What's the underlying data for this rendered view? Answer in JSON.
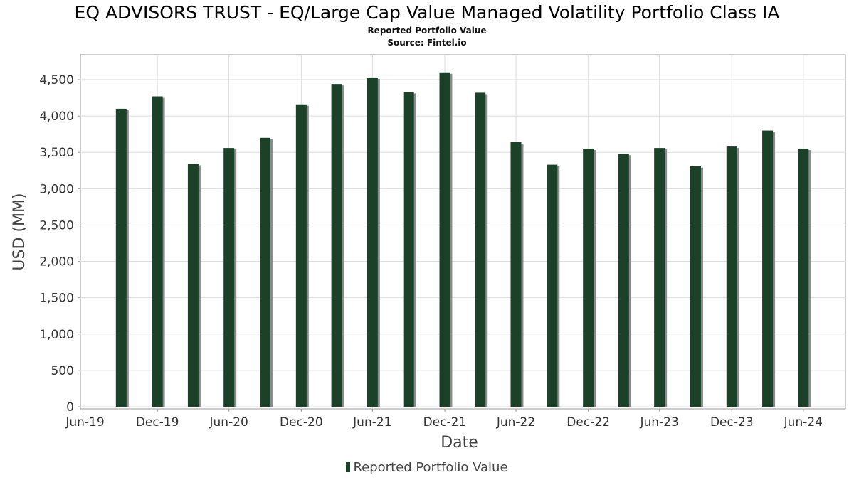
{
  "chart_data": {
    "type": "bar",
    "title": "EQ ADVISORS TRUST - EQ/Large Cap Value Managed Volatility Portfolio Class IA",
    "subtitle": "Reported Portfolio Value",
    "source": "Source: Fintel.io",
    "xlabel": "Date",
    "ylabel": "USD (MM)",
    "ylim": [
      0,
      4750
    ],
    "x_ticks": [
      "Jun-19",
      "Dec-19",
      "Jun-20",
      "Dec-20",
      "Jun-21",
      "Dec-21",
      "Jun-22",
      "Dec-22",
      "Jun-23",
      "Dec-23",
      "Jun-24"
    ],
    "y_ticks": [
      "0",
      "500",
      "1,000",
      "1,500",
      "2,000",
      "2,500",
      "3,000",
      "3,500",
      "4,000",
      "4,500"
    ],
    "y_tick_values": [
      0,
      500,
      1000,
      1500,
      2000,
      2500,
      3000,
      3500,
      4000,
      4500
    ],
    "legend_position": "bottom-center",
    "grid": true,
    "series": [
      {
        "name": "Reported Portfolio Value",
        "x": [
          "2019-09-30",
          "2019-12-31",
          "2020-03-31",
          "2020-06-30",
          "2020-09-30",
          "2020-12-31",
          "2021-03-31",
          "2021-06-30",
          "2021-09-30",
          "2021-12-31",
          "2022-03-31",
          "2022-06-30",
          "2022-09-30",
          "2022-12-31",
          "2023-03-31",
          "2023-06-30",
          "2023-09-30",
          "2023-12-31",
          "2024-03-31",
          "2024-06-30"
        ],
        "values": [
          4100,
          4270,
          3340,
          3560,
          3700,
          4160,
          4440,
          4530,
          4330,
          4600,
          4320,
          3640,
          3330,
          3550,
          3480,
          3560,
          3310,
          3580,
          3800,
          3550
        ]
      }
    ],
    "colors": {
      "bar": "#1b4228",
      "bar_shadow": "#8c8c8c",
      "grid": "#dddddd",
      "axis": "#999999",
      "tick_text": "#333333",
      "label_text": "#444444"
    }
  }
}
